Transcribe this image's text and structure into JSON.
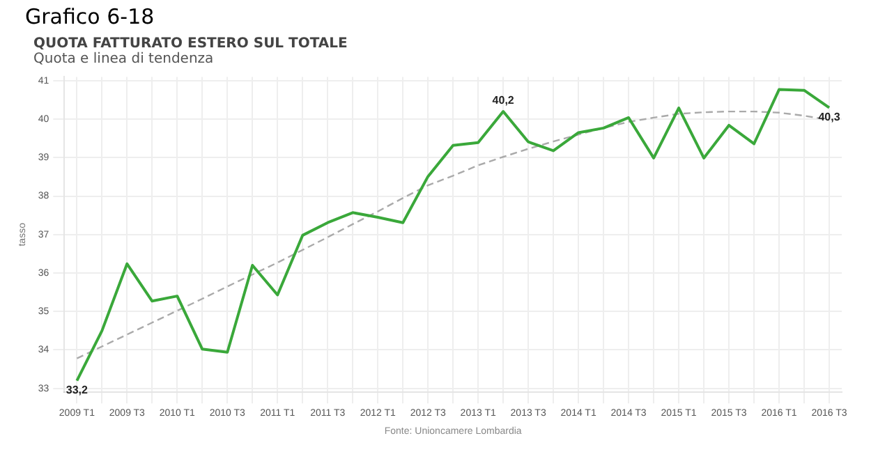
{
  "chart_data": {
    "type": "line",
    "title": "QUOTA FATTURATO ESTERO SUL TOTALE",
    "subtitle": "Quota e linea di tendenza",
    "ylabel": "tasso",
    "annotations": [
      "Grafico 6-18",
      "Fonte: Unioncamere Lombardia"
    ],
    "categories": [
      "2009 T1",
      null,
      "2009 T3",
      null,
      "2010 T1",
      null,
      "2010 T3",
      null,
      "2011 T1",
      null,
      "2011 T3",
      null,
      "2012 T1",
      null,
      "2012 T3",
      null,
      "2013 T1",
      null,
      "2013 T3",
      null,
      "2014 T1",
      null,
      "2014 T3",
      null,
      "2015 T1",
      null,
      "2015 T3",
      null,
      "2016 T1",
      null,
      "2016 T3"
    ],
    "series": [
      {
        "type": "line",
        "color": "#3aa83a",
        "line_style": "solid",
        "values": [
          33.2,
          34.5,
          36.24,
          35.27,
          35.4,
          34.02,
          33.94,
          36.2,
          35.43,
          36.98,
          37.31,
          37.57,
          37.45,
          37.31,
          38.51,
          39.32,
          39.39,
          40.2,
          39.41,
          39.18,
          39.65,
          39.77,
          40.04,
          38.99,
          40.29,
          38.99,
          39.84,
          39.36,
          40.77,
          40.75,
          40.3
        ],
        "value_labels": [
          "33,2",
          null,
          null,
          null,
          null,
          null,
          null,
          null,
          null,
          null,
          null,
          null,
          null,
          null,
          null,
          null,
          null,
          "40,2",
          null,
          null,
          null,
          null,
          null,
          null,
          null,
          null,
          null,
          null,
          null,
          null,
          "40,3"
        ]
      },
      {
        "type": "line",
        "color": "#aaaaaa",
        "line_style": "dashed",
        "values": [
          33.78,
          34.09,
          34.4,
          34.71,
          35.02,
          35.33,
          35.65,
          35.96,
          36.27,
          36.6,
          36.93,
          37.27,
          37.6,
          37.95,
          38.28,
          38.53,
          38.8,
          39.02,
          39.23,
          39.42,
          39.6,
          39.77,
          39.93,
          40.04,
          40.14,
          40.18,
          40.2,
          40.2,
          40.17,
          40.09,
          39.98
        ]
      }
    ],
    "ylim": [
      32.9,
      41.1
    ],
    "yticks": [
      33,
      34,
      35,
      36,
      37,
      38,
      39,
      40,
      41
    ],
    "grid": true,
    "legend": false,
    "marker": "none"
  }
}
